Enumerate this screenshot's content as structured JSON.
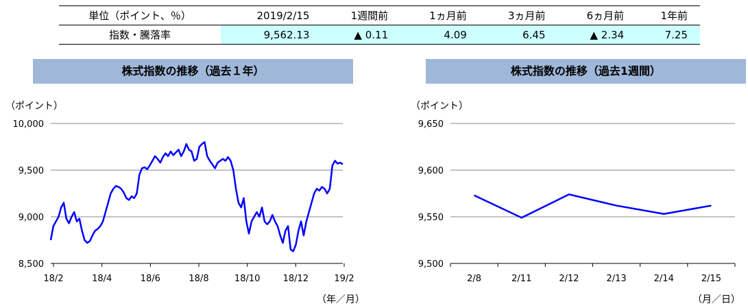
{
  "table": {
    "headers": [
      "単位（ポイント、％）",
      "2019/2/15",
      "1週間前",
      "1ヵ月前",
      "3ヵ月前",
      "6ヵ月前",
      "1年前"
    ],
    "row_label": "指数・騰落率",
    "values": [
      "9,562.13",
      "▲ 0.11",
      "4.09",
      "6.45",
      "▲ 2.34",
      "7.25"
    ]
  },
  "colors": {
    "line": "#0000ff",
    "title_bg": "#9fb7d9",
    "value_bg": "#ccffff"
  },
  "chart_data": [
    {
      "type": "line",
      "title": "株式指数の推移（過去１年）",
      "ylabel": "（ポイント）",
      "xlabel": "（年／月）",
      "ylim": [
        8500,
        10000
      ],
      "yticks": [
        8500,
        9000,
        9500,
        10000
      ],
      "ytick_labels": [
        "8,500",
        "9,000",
        "9,500",
        "10,000"
      ],
      "xtick_labels": [
        "18/2",
        "18/4",
        "18/6",
        "18/8",
        "18/10",
        "18/12",
        "19/2"
      ],
      "grid": true,
      "series": [
        {
          "values": [
            8750,
            8900,
            8950,
            9000,
            9100,
            9150,
            8980,
            8930,
            9000,
            9050,
            8950,
            8980,
            8850,
            8750,
            8720,
            8740,
            8800,
            8850,
            8870,
            8900,
            8950,
            9050,
            9150,
            9250,
            9300,
            9330,
            9320,
            9300,
            9260,
            9200,
            9180,
            9220,
            9200,
            9250,
            9450,
            9520,
            9530,
            9510,
            9550,
            9600,
            9650,
            9620,
            9580,
            9640,
            9680,
            9650,
            9700,
            9660,
            9690,
            9720,
            9650,
            9700,
            9780,
            9720,
            9700,
            9600,
            9620,
            9750,
            9780,
            9800,
            9650,
            9600,
            9560,
            9520,
            9580,
            9600,
            9620,
            9600,
            9640,
            9600,
            9500,
            9300,
            9150,
            9100,
            9200,
            8950,
            8820,
            8950,
            9000,
            9050,
            9000,
            9100,
            8950,
            8920,
            8950,
            9020,
            8950,
            8900,
            8800,
            8720,
            8850,
            8900,
            8650,
            8630,
            8700,
            8850,
            8950,
            8800,
            8950,
            9050,
            9150,
            9250,
            9300,
            9280,
            9320,
            9300,
            9250,
            9300,
            9550,
            9600,
            9570,
            9580,
            9562
          ]
        }
      ]
    },
    {
      "type": "line",
      "title": "株式指数の推移（過去1週間）",
      "ylabel": "（ポイント）",
      "xlabel": "（月／日）",
      "categories": [
        "2/8",
        "2/11",
        "2/12",
        "2/13",
        "2/14",
        "2/15"
      ],
      "ylim": [
        9500,
        9650
      ],
      "yticks": [
        9500,
        9550,
        9600,
        9650
      ],
      "ytick_labels": [
        "9,500",
        "9,550",
        "9,600",
        "9,650"
      ],
      "grid": true,
      "series": [
        {
          "values": [
            9573,
            9549,
            9574,
            9562,
            9553,
            9562
          ]
        }
      ]
    }
  ]
}
